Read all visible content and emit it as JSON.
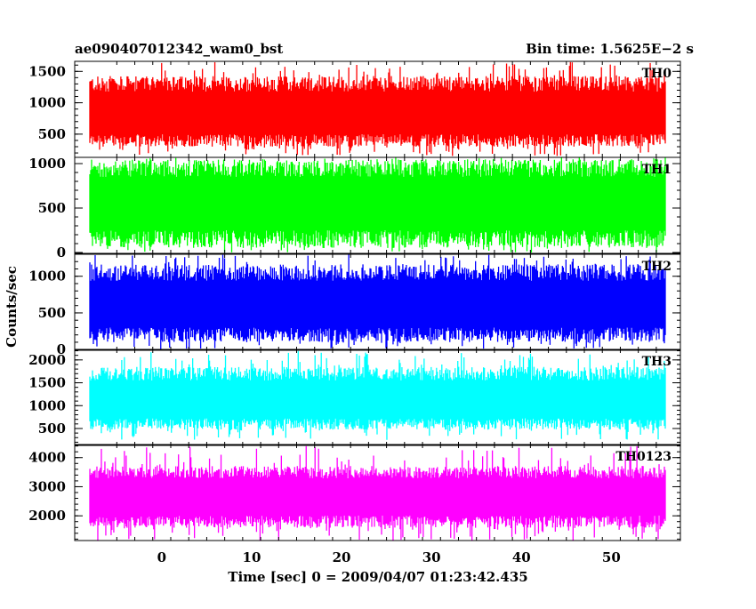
{
  "header": {
    "title": "ae090407012342_wam0_bst",
    "bin_time": "Bin time: 1.5625E−2 s"
  },
  "chart_data": {
    "type": "line",
    "title": "ae090407012342_wam0_bst",
    "xlabel": "Time [sec] 0 = 2009/04/07 01:23:42.435",
    "ylabel": "Counts/sec",
    "xlim": [
      -8,
      56
    ],
    "x_data_range": [
      -8,
      56
    ],
    "x_ticks": [
      0,
      10,
      20,
      30,
      40,
      50
    ],
    "x_tick_labels": [
      "0",
      "10",
      "20",
      "30",
      "40",
      "50"
    ],
    "grid": false,
    "legend": "none",
    "panels": [
      {
        "name": "TH0",
        "color": "#ff0000",
        "ylim": [
          130,
          1660
        ],
        "ticks": [
          500,
          1000,
          1500
        ],
        "tick_labels": [
          "500",
          "1000",
          "1500"
        ],
        "typical_range": [
          400,
          1300
        ],
        "peak_range": [
          150,
          1660
        ],
        "mean": 800
      },
      {
        "name": "TH1",
        "color": "#00ff00",
        "ylim": [
          -10,
          1070
        ],
        "ticks": [
          0,
          500,
          1000
        ],
        "tick_labels": [
          "0",
          "500",
          "1000"
        ],
        "typical_range": [
          150,
          950
        ],
        "peak_range": [
          0,
          1070
        ],
        "mean": 550
      },
      {
        "name": "TH2",
        "color": "#0000ff",
        "ylim": [
          -10,
          1300
        ],
        "ticks": [
          0,
          500,
          1000
        ],
        "tick_labels": [
          "0",
          "500",
          "1000"
        ],
        "typical_range": [
          200,
          1050
        ],
        "peak_range": [
          0,
          1300
        ],
        "mean": 600
      },
      {
        "name": "TH3",
        "color": "#00ffff",
        "ylim": [
          130,
          2230
        ],
        "ticks": [
          500,
          1000,
          1500,
          2000
        ],
        "tick_labels": [
          "500",
          "1000",
          "1500",
          "2000"
        ],
        "typical_range": [
          600,
          1700
        ],
        "peak_range": [
          250,
          2200
        ],
        "mean": 1100
      },
      {
        "name": "TH0123",
        "color": "#ff00ff",
        "ylim": [
          1150,
          4450
        ],
        "ticks": [
          2000,
          3000,
          4000
        ],
        "tick_labels": [
          "2000",
          "3000",
          "4000"
        ],
        "typical_range": [
          1800,
          3500
        ],
        "peak_range": [
          1150,
          4400
        ],
        "mean": 2650
      }
    ]
  }
}
